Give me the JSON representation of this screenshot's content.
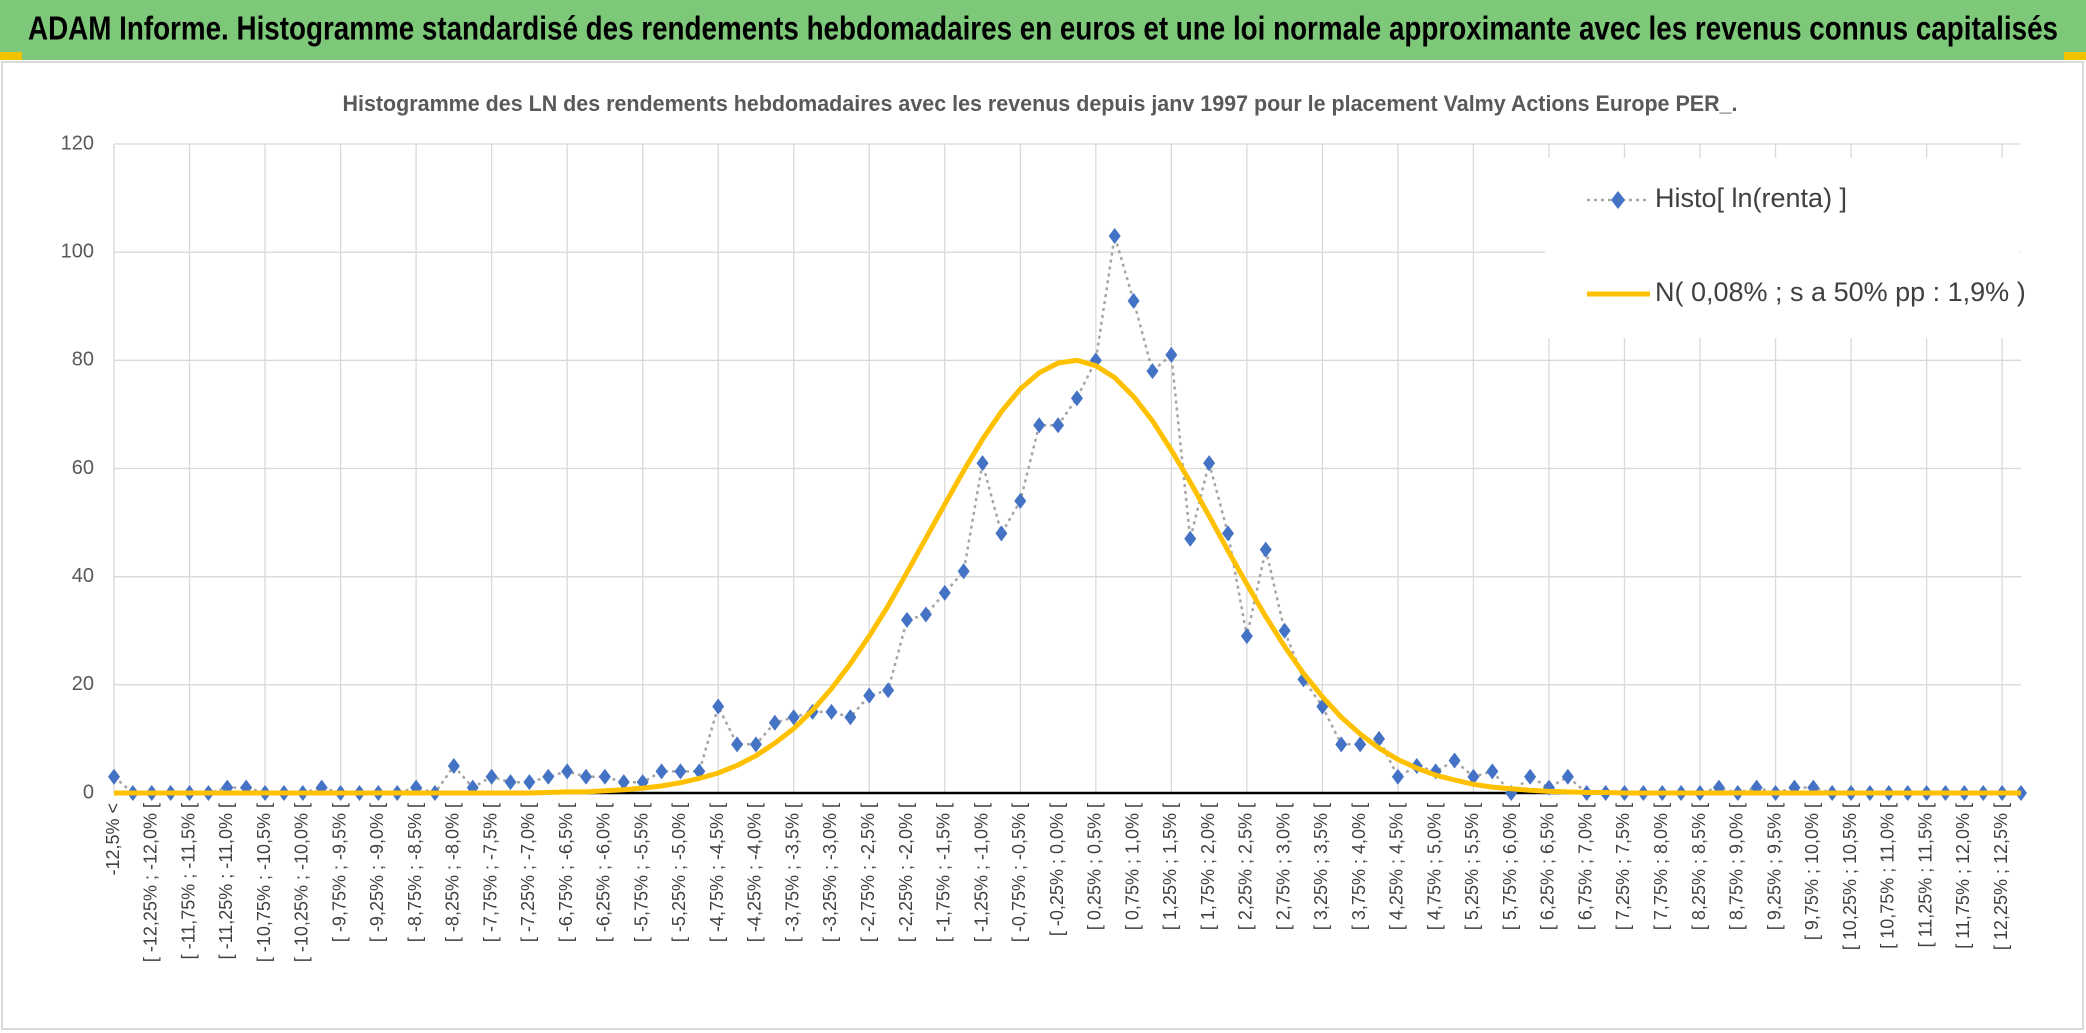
{
  "header": {
    "title": "ADAM Informe. Histogramme standardisé des rendements hebdomadaires en euros et une loi normale approximante avec les revenus connus capitalisés"
  },
  "chart_data": {
    "type": "line",
    "title": "Histogramme des LN des rendements hebdomadaires avec les revenus depuis janv 1997 pour le placement Valmy Actions Europe PER_.",
    "categories": [
      "-12,5% <",
      null,
      "[ -12,25% ; -12,0% [",
      null,
      "[ -11,75% ; -11,5% [",
      null,
      "[ -11,25% ; -11,0% [",
      null,
      "[ -10,75% ; -10,5% [",
      null,
      "[ -10,25% ; -10,0% [",
      null,
      "[ -9,75% ; -9,5% [",
      null,
      "[ -9,25% ; -9,0% [",
      null,
      "[ -8,75% ; -8,5% [",
      null,
      "[ -8,25% ; -8,0% [",
      null,
      "[ -7,75% ; -7,5% [",
      null,
      "[ -7,25% ; -7,0% [",
      null,
      "[ -6,75% ; -6,5% [",
      null,
      "[ -6,25% ; -6,0% [",
      null,
      "[ -5,75% ; -5,5% [",
      null,
      "[ -5,25% ; -5,0% [",
      null,
      "[ -4,75% ; -4,5% [",
      null,
      "[ -4,25% ; -4,0% [",
      null,
      "[ -3,75% ; -3,5% [",
      null,
      "[ -3,25% ; -3,0% [",
      null,
      "[ -2,75% ; -2,5% [",
      null,
      "[ -2,25% ; -2,0% [",
      null,
      "[ -1,75% ; -1,5% [",
      null,
      "[ -1,25% ; -1,0% [",
      null,
      "[ -0,75% ; -0,5% [",
      null,
      "[ -0,25% ; 0,0% [",
      null,
      "[ 0,25% ; 0,5% [",
      null,
      "[ 0,75% ; 1,0% [",
      null,
      "[ 1,25% ; 1,5% [",
      null,
      "[ 1,75% ; 2,0% [",
      null,
      "[ 2,25% ; 2,5% [",
      null,
      "[ 2,75% ; 3,0% [",
      null,
      "[ 3,25% ; 3,5% [",
      null,
      "[ 3,75% ; 4,0% [",
      null,
      "[ 4,25% ; 4,5% [",
      null,
      "[ 4,75% ; 5,0% [",
      null,
      "[ 5,25% ; 5,5% [",
      null,
      "[ 5,75% ; 6,0% [",
      null,
      "[ 6,25% ; 6,5% [",
      null,
      "[ 6,75% ; 7,0% [",
      null,
      "[ 7,25% ; 7,5% [",
      null,
      "[ 7,75% ; 8,0% [",
      null,
      "[ 8,25% ; 8,5% [",
      null,
      "[ 8,75% ; 9,0% [",
      null,
      "[ 9,25% ; 9,5% [",
      null,
      "[ 9,75% ; 10,0% [",
      null,
      "[ 10,25% ; 10,5% [",
      null,
      "[ 10,75% ; 11,0% [",
      null,
      "[ 11,25% ; 11,5% [",
      null,
      "[ 11,75% ; 12,0% [",
      null,
      "[ 12,25% ; 12,5% [",
      null
    ],
    "series": [
      {
        "name": "Histo[ ln(renta) ]",
        "color": "#4472c4",
        "line_color": "#a5a5a5",
        "line_style": "dotted",
        "marker": "diamond",
        "values": [
          3,
          0,
          0,
          0,
          0,
          0,
          1,
          1,
          0,
          0,
          0,
          1,
          0,
          0,
          0,
          0,
          1,
          0,
          5,
          1,
          3,
          2,
          2,
          3,
          4,
          3,
          3,
          2,
          2,
          4,
          4,
          4,
          16,
          9,
          9,
          13,
          14,
          15,
          15,
          14,
          18,
          19,
          32,
          33,
          37,
          41,
          61,
          48,
          54,
          68,
          68,
          73,
          80,
          103,
          91,
          78,
          81,
          47,
          61,
          48,
          29,
          45,
          30,
          21,
          16,
          9,
          9,
          10,
          3,
          5,
          4,
          6,
          3,
          4,
          0,
          3,
          1,
          3,
          0,
          0,
          0,
          0,
          0,
          0,
          0,
          1,
          0,
          1,
          0,
          1,
          1,
          0,
          0,
          0,
          0,
          0,
          0,
          0,
          0,
          0,
          0,
          0
        ]
      },
      {
        "name": "N( 0,08% ; s a 50% pp : 1,9% )",
        "color": "#ffc000",
        "line_style": "solid",
        "marker": "none",
        "values": [
          0,
          0,
          0,
          0,
          0,
          0,
          0,
          0,
          0,
          0,
          0,
          0,
          0,
          0,
          0,
          0,
          0,
          0,
          0,
          0,
          0,
          0,
          0,
          0.1,
          0.2,
          0.2,
          0.4,
          0.6,
          0.9,
          1.3,
          1.9,
          2.7,
          3.7,
          5.1,
          6.9,
          9.2,
          11.9,
          15.3,
          19.3,
          23.9,
          29.0,
          34.6,
          40.8,
          47.1,
          53.4,
          59.6,
          65.4,
          70.5,
          74.7,
          77.7,
          79.5,
          80.0,
          79.0,
          76.8,
          73.3,
          68.8,
          63.4,
          57.5,
          51.2,
          44.8,
          38.6,
          32.6,
          27.1,
          22.1,
          17.8,
          14.0,
          10.9,
          8.3,
          6.2,
          4.6,
          3.3,
          2.4,
          1.6,
          1.1,
          0.8,
          0.5,
          0.3,
          0.2,
          0.1,
          0.1,
          0,
          0,
          0,
          0,
          0,
          0,
          0,
          0,
          0,
          0,
          0,
          0,
          0,
          0,
          0,
          0,
          0,
          0,
          0,
          0,
          0,
          0
        ]
      }
    ],
    "ylim": [
      0,
      120
    ],
    "yticks": [
      0,
      20,
      40,
      60,
      80,
      100,
      120
    ],
    "grid": true,
    "legend": "top right"
  }
}
